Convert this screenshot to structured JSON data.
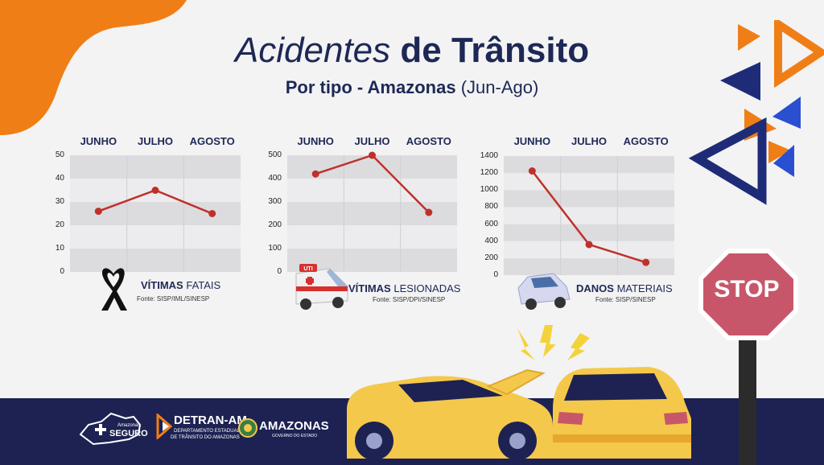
{
  "header": {
    "title_italic": "Acidentes",
    "title_bold": "de Trânsito",
    "subtitle_bold": "Por tipo - Amazonas",
    "subtitle_range": "(Jun-Ago)"
  },
  "chart_data": [
    {
      "type": "line",
      "categories": [
        "JUNHO",
        "JULHO",
        "AGOSTO"
      ],
      "values": [
        26,
        35,
        25
      ],
      "yticks": [
        0,
        10,
        20,
        30,
        40,
        50
      ],
      "ylim": [
        0,
        50
      ],
      "caption_bold": "VÍTIMAS",
      "caption_rest": "FATAIS",
      "source": "Fonte: SISP/IML/SINESP",
      "line_color": "#c0302a"
    },
    {
      "type": "line",
      "categories": [
        "JUNHO",
        "JULHO",
        "AGOSTO"
      ],
      "values": [
        420,
        500,
        255
      ],
      "yticks": [
        0,
        100,
        200,
        300,
        400,
        500
      ],
      "ylim": [
        0,
        500
      ],
      "caption_bold": "VÍTIMAS",
      "caption_rest": "LESIONADAS",
      "source": "Fonte: SISP/DPI/SINESP",
      "line_color": "#c0302a"
    },
    {
      "type": "line",
      "categories": [
        "JUNHO",
        "JULHO",
        "AGOSTO"
      ],
      "values": [
        1225,
        360,
        150
      ],
      "yticks": [
        0,
        200,
        400,
        600,
        800,
        1000,
        1200,
        1400
      ],
      "ylim": [
        0,
        1400
      ],
      "caption_bold": "DANOS",
      "caption_rest": "MATERIAIS",
      "source": "Fonte: SISP/SINESP",
      "line_color": "#c0302a"
    }
  ],
  "ambulance_label": "UTI",
  "sign": {
    "text": "STOP"
  },
  "footer": {
    "logo1_small": "Amazonas",
    "logo1_main": "SEGURO",
    "logo2_main": "DETRAN-AM",
    "logo2_sub1": "DEPARTAMENTO ESTADUAL",
    "logo2_sub2": "DE TRÂNSITO DO AMAZONAS",
    "logo3_main": "AMAZONAS",
    "logo3_sub": "GOVERNO DO ESTADO"
  },
  "colors": {
    "navy": "#1d2253",
    "orange": "#f07e16",
    "red_line": "#c0302a",
    "stop_red": "#c8566a",
    "car_yellow": "#f4c84a"
  }
}
